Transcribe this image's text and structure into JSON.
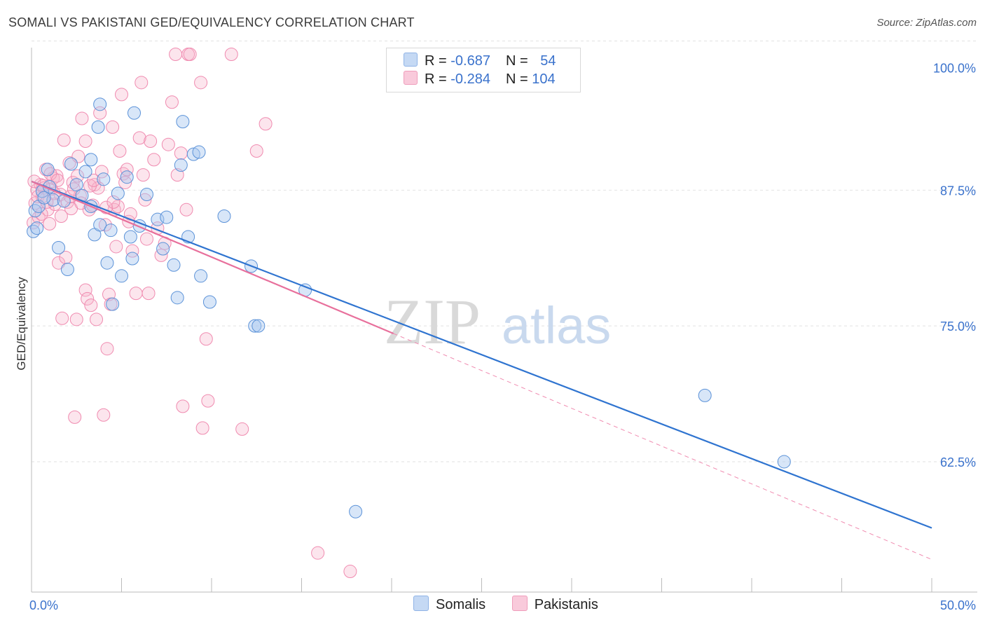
{
  "title": "SOMALI VS PAKISTANI GED/EQUIVALENCY CORRELATION CHART",
  "source": "Source: ZipAtlas.com",
  "watermark": {
    "zip": "ZIP",
    "atlas": "atlas"
  },
  "legend": {
    "rows": [
      {
        "r_label": "R = ",
        "r_value": "-0.687",
        "n_label": "N = ",
        "n_value": "54",
        "color": "#a9c8ef"
      },
      {
        "r_label": "R = ",
        "r_value": "-0.284",
        "n_label": "N = ",
        "n_value": "104",
        "color": "#f6b4cb"
      }
    ]
  },
  "chart_data": {
    "type": "scatter",
    "title": "SOMALI VS PAKISTANI GED/EQUIVALENCY CORRELATION CHART",
    "xlabel": "",
    "ylabel": "GED/Equivalency",
    "xlim": [
      0,
      50
    ],
    "ylim": [
      50.5,
      101
    ],
    "x_tick_labels": [
      "0.0%",
      "50.0%"
    ],
    "y_ticks": [
      62.5,
      75.0,
      87.5,
      100.0
    ],
    "y_tick_labels": [
      "62.5%",
      "75.0%",
      "87.5%",
      "100.0%"
    ],
    "grid": true,
    "legend_position": "bottom-center",
    "series": [
      {
        "name": "Somalis",
        "color": "#6a9fe0",
        "trend": {
          "x": [
            0,
            50
          ],
          "y": [
            88.3,
            56.4
          ]
        },
        "points": [
          [
            0.1,
            83.7
          ],
          [
            0.2,
            85.6
          ],
          [
            0.4,
            86.0
          ],
          [
            0.6,
            87.4
          ],
          [
            0.9,
            89.4
          ],
          [
            1.2,
            86.6
          ],
          [
            1.5,
            82.2
          ],
          [
            1.8,
            86.5
          ],
          [
            2.0,
            80.2
          ],
          [
            2.2,
            89.9
          ],
          [
            2.5,
            88.0
          ],
          [
            2.8,
            87.0
          ],
          [
            3.0,
            89.2
          ],
          [
            3.3,
            86.0
          ],
          [
            3.3,
            90.3
          ],
          [
            3.5,
            83.4
          ],
          [
            3.7,
            93.3
          ],
          [
            3.8,
            84.3
          ],
          [
            3.8,
            95.4
          ],
          [
            4.0,
            88.5
          ],
          [
            4.2,
            80.8
          ],
          [
            4.4,
            83.8
          ],
          [
            4.5,
            77.0
          ],
          [
            4.8,
            87.2
          ],
          [
            5.0,
            79.6
          ],
          [
            5.3,
            88.7
          ],
          [
            5.5,
            83.2
          ],
          [
            5.6,
            81.2
          ],
          [
            5.7,
            94.6
          ],
          [
            6.0,
            84.2
          ],
          [
            6.4,
            87.1
          ],
          [
            7.0,
            84.8
          ],
          [
            7.3,
            82.1
          ],
          [
            7.5,
            85.0
          ],
          [
            7.9,
            80.6
          ],
          [
            8.1,
            77.6
          ],
          [
            8.3,
            89.8
          ],
          [
            8.4,
            93.8
          ],
          [
            8.7,
            83.2
          ],
          [
            9.0,
            90.8
          ],
          [
            9.3,
            91.0
          ],
          [
            9.4,
            79.6
          ],
          [
            9.9,
            77.2
          ],
          [
            10.7,
            85.1
          ],
          [
            12.2,
            80.5
          ],
          [
            12.4,
            75.0
          ],
          [
            12.6,
            75.0
          ],
          [
            15.2,
            78.3
          ],
          [
            18.0,
            57.9
          ],
          [
            37.4,
            68.6
          ],
          [
            41.8,
            62.5
          ],
          [
            0.3,
            84.0
          ],
          [
            0.7,
            86.8
          ],
          [
            1.0,
            87.8
          ]
        ]
      },
      {
        "name": "Pakistanis",
        "color": "#f08bb0",
        "trend": {
          "x": [
            0,
            20.1
          ],
          "y": [
            88.3,
            74.3
          ]
        },
        "trend_ext": {
          "x": [
            20.1,
            50
          ],
          "y": [
            74.3,
            53.5
          ]
        },
        "points": [
          [
            0.1,
            84.5
          ],
          [
            0.2,
            86.3
          ],
          [
            0.3,
            87.5
          ],
          [
            0.4,
            85.0
          ],
          [
            0.5,
            88.0
          ],
          [
            0.6,
            86.9
          ],
          [
            0.7,
            87.7
          ],
          [
            0.8,
            89.4
          ],
          [
            0.9,
            85.7
          ],
          [
            1.0,
            84.4
          ],
          [
            1.1,
            87.6
          ],
          [
            1.2,
            88.6
          ],
          [
            1.3,
            86.2
          ],
          [
            1.4,
            88.8
          ],
          [
            1.5,
            80.8
          ],
          [
            1.6,
            87.1
          ],
          [
            1.7,
            75.7
          ],
          [
            1.8,
            92.1
          ],
          [
            1.9,
            81.3
          ],
          [
            2.0,
            86.4
          ],
          [
            2.1,
            90.0
          ],
          [
            2.2,
            85.8
          ],
          [
            2.3,
            88.2
          ],
          [
            2.4,
            66.6
          ],
          [
            2.5,
            75.6
          ],
          [
            2.6,
            90.6
          ],
          [
            2.7,
            87.0
          ],
          [
            2.8,
            94.1
          ],
          [
            3.0,
            92.0
          ],
          [
            3.0,
            78.3
          ],
          [
            3.1,
            77.5
          ],
          [
            3.2,
            85.7
          ],
          [
            3.3,
            76.9
          ],
          [
            3.4,
            86.1
          ],
          [
            3.5,
            88.0
          ],
          [
            3.6,
            75.6
          ],
          [
            3.7,
            87.7
          ],
          [
            3.8,
            94.6
          ],
          [
            3.9,
            89.2
          ],
          [
            4.0,
            66.8
          ],
          [
            4.1,
            84.3
          ],
          [
            4.2,
            72.9
          ],
          [
            4.3,
            77.9
          ],
          [
            4.4,
            77.0
          ],
          [
            4.5,
            93.3
          ],
          [
            4.6,
            85.7
          ],
          [
            4.7,
            82.3
          ],
          [
            4.8,
            86.0
          ],
          [
            4.9,
            91.1
          ],
          [
            5.0,
            96.3
          ],
          [
            5.1,
            89.0
          ],
          [
            5.2,
            88.2
          ],
          [
            5.3,
            89.4
          ],
          [
            5.4,
            84.6
          ],
          [
            5.5,
            85.3
          ],
          [
            5.6,
            81.9
          ],
          [
            5.8,
            78.0
          ],
          [
            6.0,
            92.3
          ],
          [
            6.1,
            97.4
          ],
          [
            6.2,
            88.9
          ],
          [
            6.3,
            86.6
          ],
          [
            6.4,
            83.0
          ],
          [
            6.5,
            78.0
          ],
          [
            6.6,
            92.0
          ],
          [
            6.8,
            90.3
          ],
          [
            7.0,
            84.0
          ],
          [
            7.2,
            81.5
          ],
          [
            7.4,
            82.6
          ],
          [
            7.6,
            91.7
          ],
          [
            7.8,
            95.6
          ],
          [
            8.0,
            100.0
          ],
          [
            8.1,
            88.9
          ],
          [
            8.3,
            90.9
          ],
          [
            8.4,
            67.6
          ],
          [
            8.6,
            85.7
          ],
          [
            8.7,
            100.0
          ],
          [
            8.8,
            100.0
          ],
          [
            9.4,
            97.4
          ],
          [
            9.5,
            65.6
          ],
          [
            9.7,
            73.8
          ],
          [
            9.8,
            68.1
          ],
          [
            11.1,
            100.0
          ],
          [
            11.7,
            65.5
          ],
          [
            12.5,
            91.1
          ],
          [
            13.0,
            93.6
          ],
          [
            15.9,
            54.1
          ],
          [
            17.7,
            52.4
          ],
          [
            0.15,
            88.3
          ],
          [
            0.35,
            86.9
          ],
          [
            0.55,
            85.3
          ],
          [
            0.65,
            87.9
          ],
          [
            0.85,
            86.4
          ],
          [
            1.05,
            89.0
          ],
          [
            1.25,
            87.2
          ],
          [
            1.45,
            88.4
          ],
          [
            1.65,
            85.1
          ],
          [
            2.15,
            86.9
          ],
          [
            2.35,
            87.6
          ],
          [
            2.55,
            88.8
          ],
          [
            2.75,
            86.3
          ],
          [
            3.25,
            87.9
          ],
          [
            3.45,
            88.4
          ],
          [
            4.15,
            85.9
          ],
          [
            4.55,
            86.4
          ]
        ]
      }
    ]
  }
}
